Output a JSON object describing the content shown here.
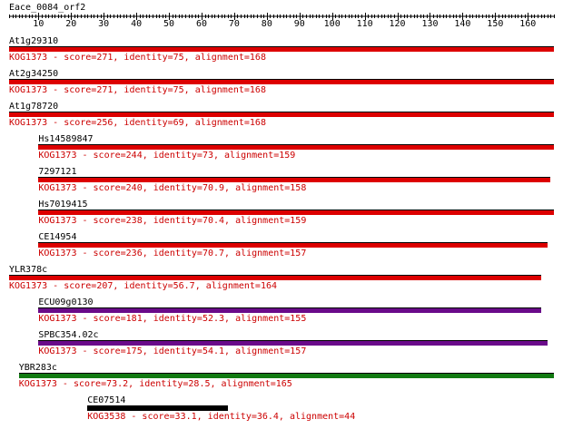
{
  "query": {
    "name": "Eace_0084_orf2",
    "length": 168,
    "tick_labels": [
      "10",
      "20",
      "30",
      "40",
      "50",
      "60",
      "70",
      "80",
      "90",
      "100",
      "110",
      "120",
      "130",
      "140",
      "150",
      "160"
    ]
  },
  "hits": [
    {
      "name": "At1g29310",
      "start": 1,
      "end": 168,
      "color": "#dd0000",
      "line": "KOG1373 - score=271, identity=75, alignment=168"
    },
    {
      "name": "At2g34250",
      "start": 1,
      "end": 168,
      "color": "#dd0000",
      "line": "KOG1373 - score=271, identity=75, alignment=168"
    },
    {
      "name": "At1g78720",
      "start": 1,
      "end": 168,
      "color": "#dd0000",
      "line": "KOG1373 - score=256, identity=69, alignment=168"
    },
    {
      "name": "Hs14589847",
      "start": 10,
      "end": 168,
      "color": "#dd0000",
      "line": "KOG1373 - score=244, identity=73, alignment=159"
    },
    {
      "name": "7297121",
      "start": 10,
      "end": 167,
      "color": "#dd0000",
      "line": "KOG1373 - score=240, identity=70.9, alignment=158"
    },
    {
      "name": "Hs7019415",
      "start": 10,
      "end": 168,
      "color": "#dd0000",
      "line": "KOG1373 - score=238, identity=70.4, alignment=159"
    },
    {
      "name": "CE14954",
      "start": 10,
      "end": 166,
      "color": "#dd0000",
      "line": "KOG1373 - score=236, identity=70.7, alignment=157"
    },
    {
      "name": "YLR378c",
      "start": 1,
      "end": 164,
      "color": "#dd0000",
      "line": "KOG1373 - score=207, identity=56.7, alignment=164"
    },
    {
      "name": "ECU09g0130",
      "start": 10,
      "end": 164,
      "color": "#6a0a8a",
      "line": "KOG1373 - score=181, identity=52.3, alignment=155"
    },
    {
      "name": "SPBC354.02c",
      "start": 10,
      "end": 166,
      "color": "#6a0a8a",
      "line": "KOG1373 - score=175, identity=54.1, alignment=157"
    },
    {
      "name": "YBR283c",
      "start": 4,
      "end": 168,
      "color": "#117a11",
      "line": "KOG1373 - score=73.2, identity=28.5, alignment=165"
    },
    {
      "name": "CE07514",
      "start": 25,
      "end": 68,
      "color": "#000000",
      "line": "KOG3538 - score=33.1, identity=36.4, alignment=44"
    }
  ]
}
